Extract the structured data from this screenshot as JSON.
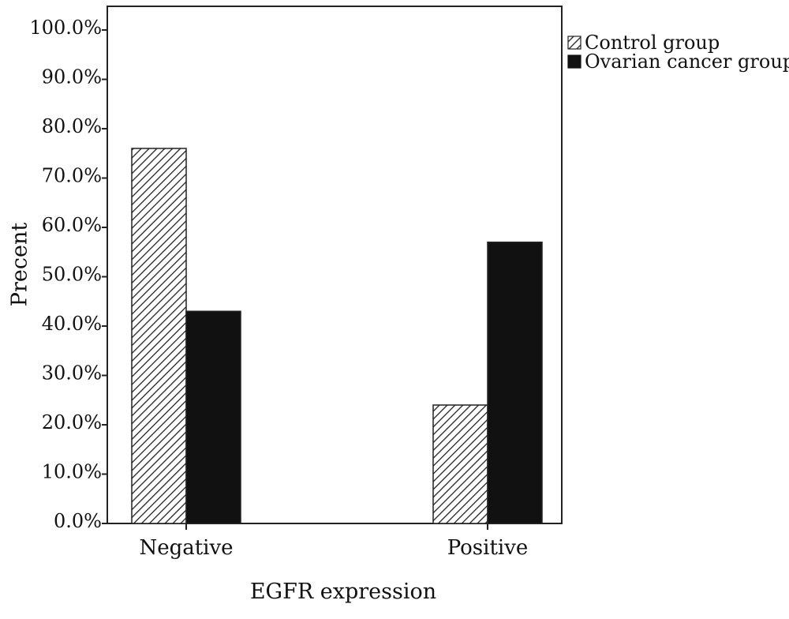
{
  "chart_data": {
    "type": "bar",
    "title": "",
    "xlabel": "EGFR expression",
    "ylabel": "Precent",
    "categories": [
      "Negative",
      "Positive"
    ],
    "series": [
      {
        "name": "Control group",
        "values": [
          76.0,
          24.0
        ],
        "fill": "hatched"
      },
      {
        "name": "Ovarian cancer group",
        "values": [
          43.0,
          57.0
        ],
        "fill": "#111111"
      }
    ],
    "ylim": [
      0,
      100
    ],
    "yticks": [
      0,
      10,
      20,
      30,
      40,
      50,
      60,
      70,
      80,
      90,
      100
    ],
    "ytick_labels": [
      "0.0%",
      "10.0%",
      "20.0%",
      "30.0%",
      "40.0%",
      "50.0%",
      "60.0%",
      "70.0%",
      "80.0%",
      "90.0%",
      "100.0%"
    ],
    "grid": false,
    "legend_position": "top-right, outside plot"
  }
}
